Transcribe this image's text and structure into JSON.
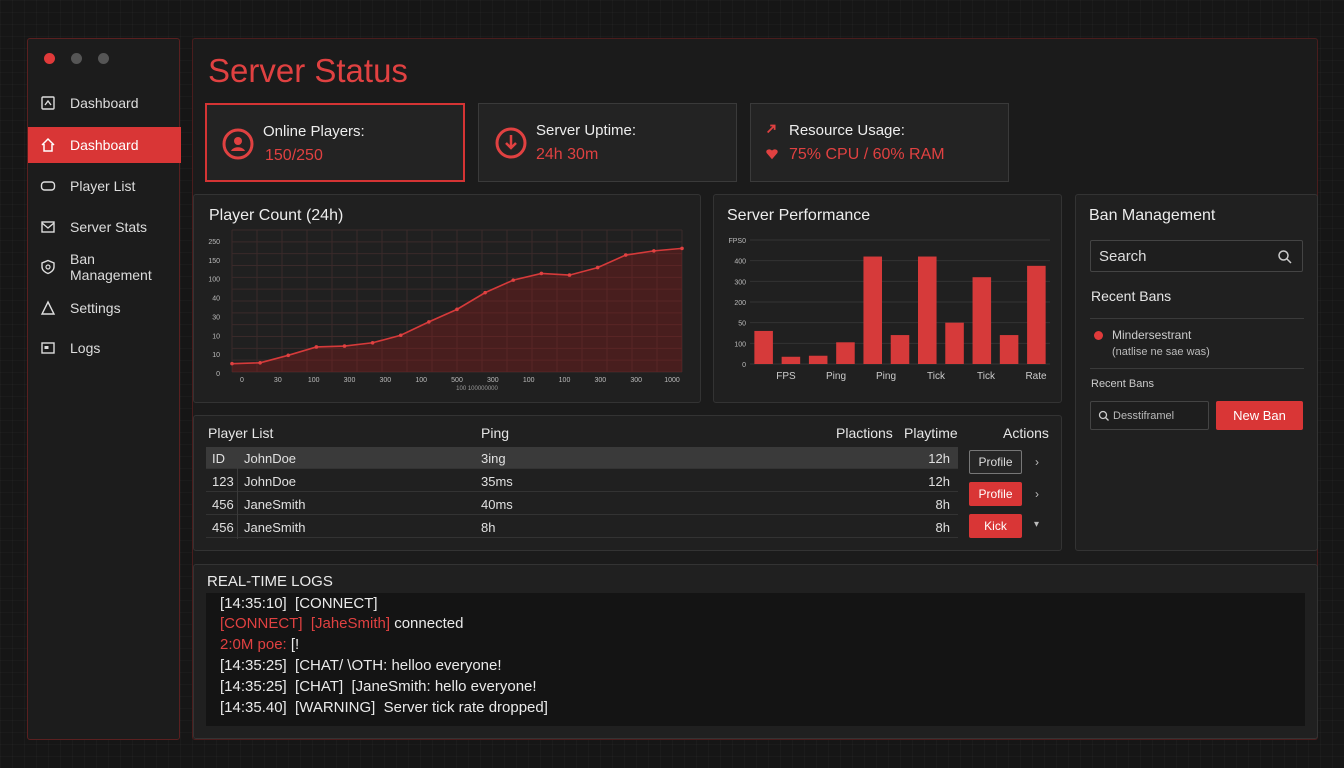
{
  "sidebar": {
    "items": [
      {
        "label": "Dashboard",
        "icon": "dashboard-icon"
      },
      {
        "label": "Dashboard",
        "icon": "home-icon",
        "active": true
      },
      {
        "label": "Player List",
        "icon": "list-icon"
      },
      {
        "label": "Server Stats",
        "icon": "stats-icon"
      },
      {
        "label": "Ban Management",
        "icon": "shield-icon"
      },
      {
        "label": "Settings",
        "icon": "settings-icon"
      },
      {
        "label": "Logs",
        "icon": "logs-icon"
      }
    ]
  },
  "page": {
    "title": "Server Status"
  },
  "stats": [
    {
      "label": "Online Players:",
      "value": "150/250",
      "icon": "user-circle-icon"
    },
    {
      "label": "Server Uptime:",
      "value": "24h 30m",
      "icon": "clock-down-icon"
    },
    {
      "label": "Resource Usage:",
      "value": "75% CPU / 60% RAM",
      "icon": "heart-icon"
    }
  ],
  "player_chart": {
    "title": "Player Count (24h)",
    "ytick_labels": [
      "250",
      "150",
      "100",
      "40",
      "30",
      "10",
      "10",
      "0"
    ],
    "xtick_labels": [
      "0",
      "30",
      "100",
      "300",
      "300",
      "100",
      "500",
      "300",
      "100",
      "100",
      "300",
      "300",
      "1000"
    ],
    "xlabel": "100 100000000"
  },
  "perf_chart": {
    "title": "Server Performance",
    "ytick_labels": [
      "FPS0",
      "400",
      "300",
      "200",
      "50",
      "100",
      "0"
    ],
    "xtick_labels": [
      "FPS",
      "Ping",
      "Ping",
      "Tick",
      "Tick",
      "Rate"
    ]
  },
  "chart_data": [
    {
      "type": "area",
      "title": "Player Count (24h)",
      "x": [
        0,
        1,
        2,
        3,
        4,
        5,
        6,
        7,
        8,
        9,
        10,
        11,
        12,
        13,
        14,
        15,
        16
      ],
      "y": [
        10,
        11,
        20,
        30,
        31,
        35,
        44,
        60,
        75,
        95,
        110,
        118,
        116,
        125,
        140,
        145,
        148
      ],
      "ylim": [
        0,
        170
      ],
      "grid": true
    },
    {
      "type": "bar",
      "title": "Server Performance",
      "values": [
        160,
        35,
        40,
        105,
        520,
        140,
        520,
        200,
        420,
        140,
        475
      ],
      "ylim": [
        0,
        600
      ],
      "grid": true
    }
  ],
  "bans": {
    "title": "Ban Management",
    "search_placeholder": "Search",
    "recent_title": "Recent Bans",
    "entry_name": "Mindersestrant",
    "entry_detail": "(natlise ne sae was)",
    "recent_small": "Recent Bans",
    "input_placeholder": "Desstiframel",
    "new_ban": "New Ban"
  },
  "players": {
    "headers": {
      "list": "Player List",
      "ping": "Ping",
      "plactions": "Plactions",
      "playtime": "Playtime",
      "actions": "Actions"
    },
    "rows": [
      {
        "id": "ID",
        "name": "JohnDoe",
        "ping": "3ing",
        "time": "12h",
        "action": "Profile",
        "style": "outline",
        "chev": "›"
      },
      {
        "id": "123",
        "name": "JohnDoe",
        "ping": "35ms",
        "time": "12h",
        "action": "Profile",
        "style": "red",
        "chev": "›"
      },
      {
        "id": "456",
        "name": "JaneSmith",
        "ping": "40ms",
        "time": "8h",
        "action": "Kick",
        "style": "red",
        "chev": "▾"
      },
      {
        "id": "456",
        "name": "JaneSmith",
        "ping": "8h",
        "time": "8h",
        "action": "",
        "style": "",
        "chev": ""
      }
    ]
  },
  "logs": {
    "title": "REAL-TIME LOGS",
    "lines": [
      {
        "a": "[14:35:10]  [CONNECT]",
        "b": ""
      },
      {
        "a": "[CONNECT]  [JaheSmith]",
        "b": " connected"
      },
      {
        "a": "2:0M poe:",
        "b": " [!"
      },
      {
        "a": "[14:35:25]  [CHAT/ \\OTH: helloo everyone!",
        "b": ""
      },
      {
        "a": "[14:35:25]  [CHAT]  [JaneSmith: hello everyone!",
        "b": ""
      },
      {
        "a": "[14:35.40]  [WARNING]  Server tick rate dropped]",
        "b": ""
      }
    ]
  },
  "colors": {
    "accent": "#d93636",
    "accent_text": "#e04141",
    "bg": "#161616"
  }
}
